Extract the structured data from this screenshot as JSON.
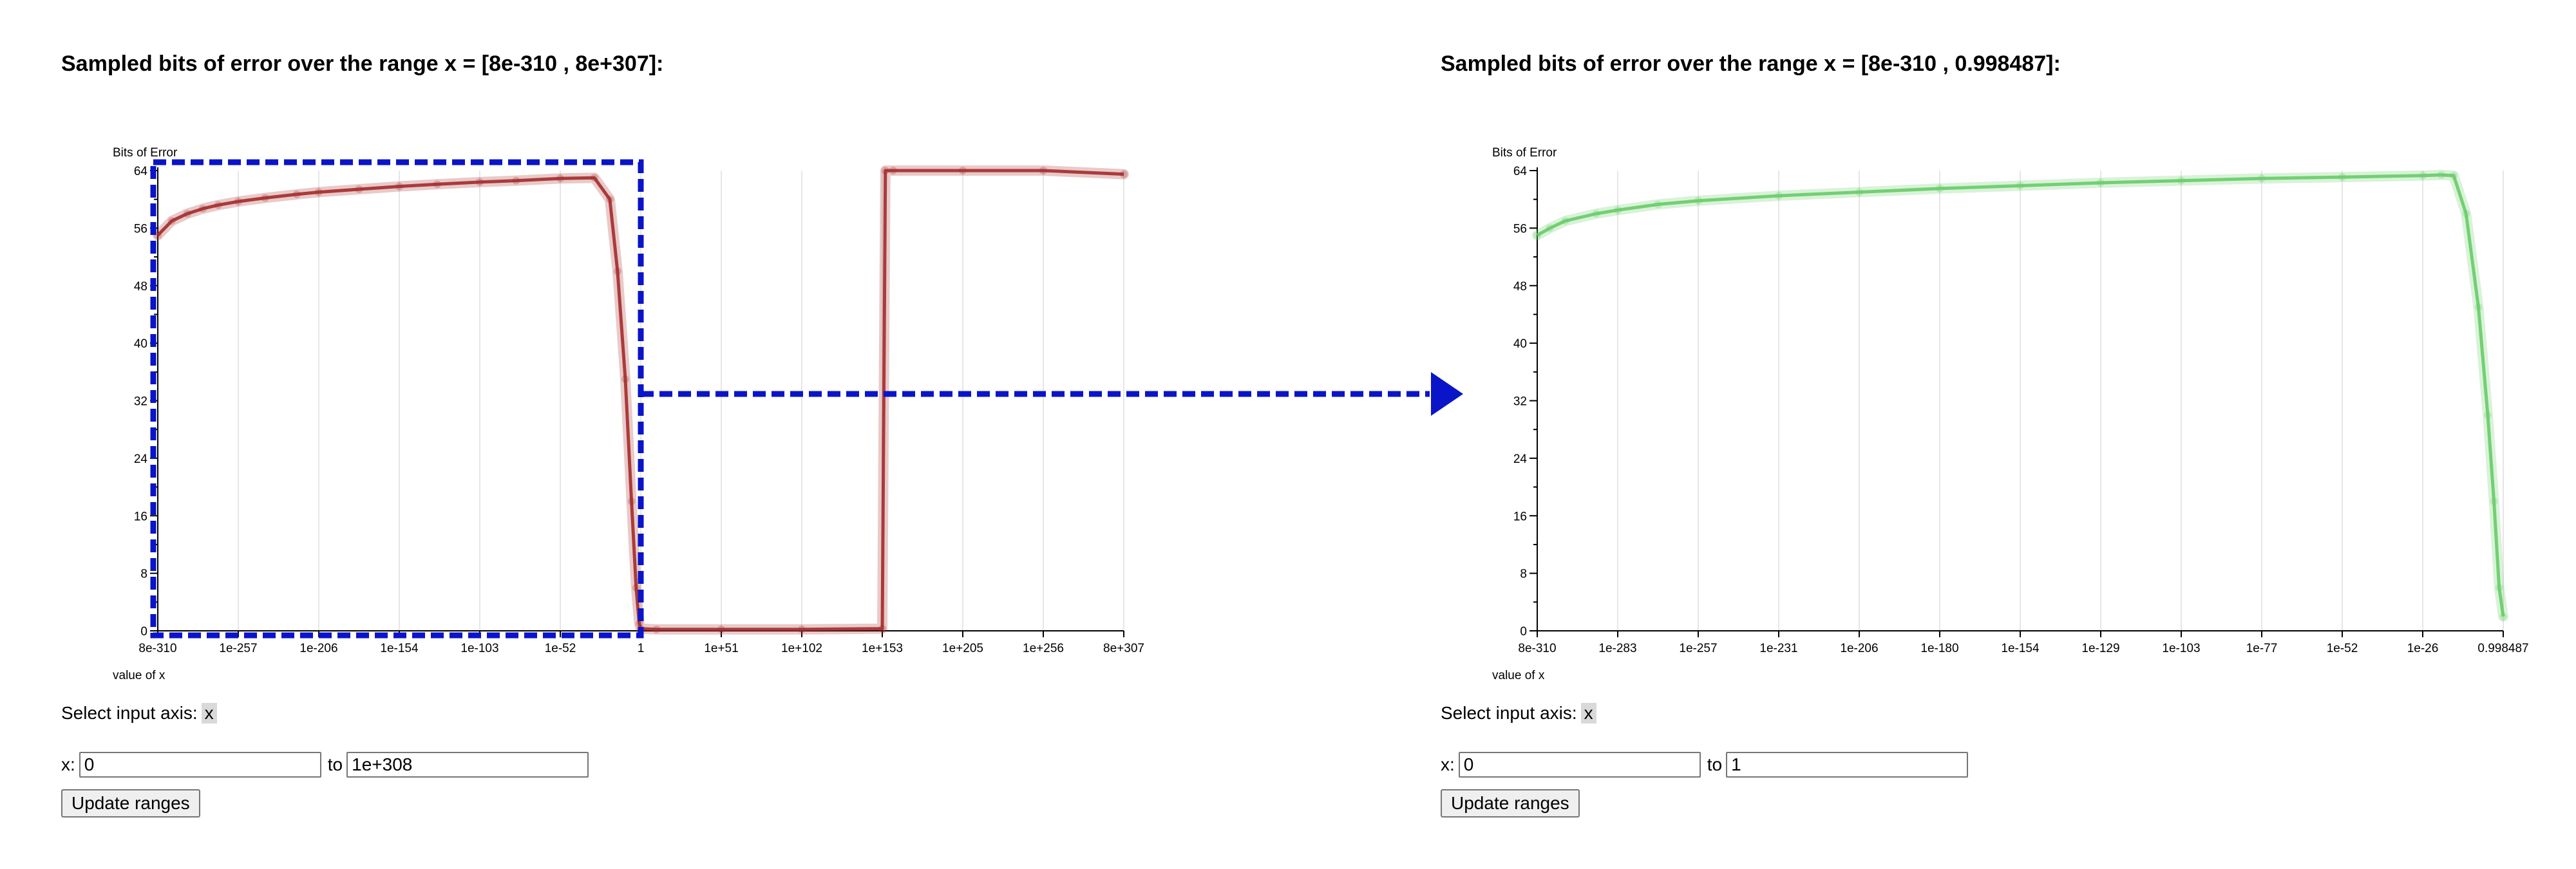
{
  "panels": [
    {
      "title": "Sampled bits of error over the range x = [8e-310 , 8e+307]:",
      "axis_select_label": "Select input axis:",
      "axis_value": "x",
      "range_label": "x:",
      "range_from": "0",
      "range_to_label": "to",
      "range_to": "1e+308",
      "button_label": "Update ranges"
    },
    {
      "title": "Sampled bits of error over the range x = [8e-310 , 0.998487]:",
      "axis_select_label": "Select input axis:",
      "axis_value": "x",
      "range_label": "x:",
      "range_from": "0",
      "range_to_label": "to",
      "range_to": "1",
      "button_label": "Update ranges"
    }
  ],
  "chart_data": [
    {
      "type": "line",
      "ylabel": "Bits of Error",
      "xlabel": "value of x",
      "ylim": [
        0,
        64
      ],
      "yticks": [
        0,
        8,
        16,
        24,
        32,
        40,
        48,
        56,
        64
      ],
      "x_scale": "log",
      "x_tick_labels": [
        "8e-310",
        "1e-257",
        "1e-206",
        "1e-154",
        "1e-103",
        "1e-52",
        "1",
        "1e+51",
        "1e+102",
        "1e+153",
        "1e+205",
        "1e+256",
        "8e+307"
      ],
      "grid": true,
      "color": "#a52a2a",
      "series": [
        {
          "x": [
            "8e-310",
            "1e-300",
            "1e-290",
            "1e-280",
            "1e-270",
            "1e-257",
            "1e-240",
            "1e-220",
            "1e-206",
            "1e-180",
            "1e-154",
            "1e-130",
            "1e-103",
            "1e-80",
            "1e-52",
            "1e-30",
            "1e-20",
            "1e-15",
            "1e-10",
            "1e-6",
            "1e-3",
            "0.1",
            "1",
            "1e+10",
            "1e+51",
            "1e+102",
            "1e+153",
            "1e+155",
            "1e+160",
            "1e+205",
            "1e+256",
            "8e+307"
          ],
          "y": [
            55,
            57,
            58,
            58.7,
            59.2,
            59.7,
            60.2,
            60.7,
            61,
            61.4,
            61.8,
            62.1,
            62.4,
            62.6,
            62.9,
            63,
            60,
            50,
            35,
            18,
            6,
            1,
            0.3,
            0.2,
            0.2,
            0.2,
            0.3,
            64,
            64,
            64,
            64,
            63.5
          ]
        }
      ]
    },
    {
      "type": "line",
      "ylabel": "Bits of Error",
      "xlabel": "value of x",
      "ylim": [
        0,
        64
      ],
      "yticks": [
        0,
        8,
        16,
        24,
        32,
        40,
        48,
        56,
        64
      ],
      "x_scale": "log",
      "x_tick_labels": [
        "8e-310",
        "1e-283",
        "1e-257",
        "1e-231",
        "1e-206",
        "1e-180",
        "1e-154",
        "1e-129",
        "1e-103",
        "1e-77",
        "1e-52",
        "1e-26",
        "0.998487"
      ],
      "grid": true,
      "color": "#66cc66",
      "series": [
        {
          "x": [
            "8e-310",
            "1e-305",
            "1e-300",
            "1e-290",
            "1e-283",
            "1e-270",
            "1e-257",
            "1e-231",
            "1e-206",
            "1e-180",
            "1e-154",
            "1e-129",
            "1e-103",
            "1e-77",
            "1e-52",
            "1e-26",
            "1e-20",
            "1e-16",
            "1e-12",
            "1e-8",
            "1e-5",
            "1e-3",
            "0.05",
            "0.998487"
          ],
          "y": [
            55,
            56,
            57,
            58,
            58.5,
            59.3,
            59.8,
            60.5,
            61,
            61.5,
            61.9,
            62.3,
            62.6,
            62.9,
            63.1,
            63.3,
            63.4,
            63.3,
            58,
            45,
            30,
            18,
            6,
            2
          ]
        }
      ]
    }
  ]
}
